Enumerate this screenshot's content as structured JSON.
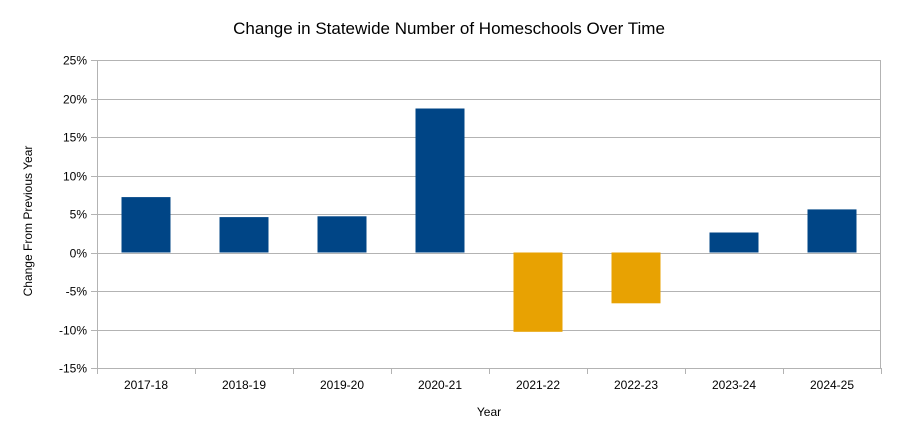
{
  "chart_data": {
    "type": "bar",
    "title": "Change in Statewide Number of Homeschools Over Time",
    "xlabel": "Year",
    "ylabel": "Change From Previous Year",
    "categories": [
      "2017-18",
      "2018-19",
      "2019-20",
      "2020-21",
      "2021-22",
      "2022-23",
      "2023-24",
      "2024-25"
    ],
    "series": [
      {
        "values": [
          7.2,
          4.6,
          4.7,
          18.7,
          -10.3,
          -6.6,
          2.6,
          5.6
        ]
      }
    ],
    "ylim": [
      -15,
      25
    ],
    "yticks": [
      25,
      20,
      15,
      10,
      5,
      0,
      -5,
      -10,
      -15
    ],
    "ytick_labels": [
      "25%",
      "20%",
      "15%",
      "10%",
      "5%",
      "0%",
      "-5%",
      "-10%",
      "-15%"
    ],
    "grid": true,
    "legend": "none",
    "colors": {
      "positive": "#004586",
      "negative": "#E8A202",
      "grid": "#b3b3b3",
      "axis": "#b3b3b3"
    }
  }
}
